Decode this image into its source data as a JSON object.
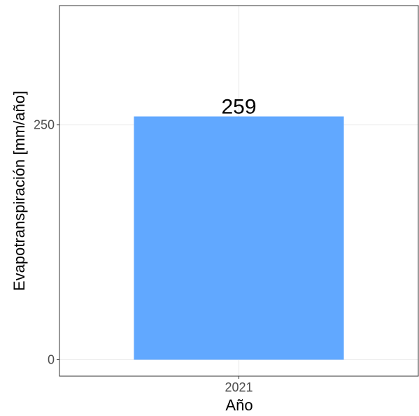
{
  "chart_data": {
    "type": "bar",
    "categories": [
      "2021"
    ],
    "values": [
      259
    ],
    "data_labels": [
      "259"
    ],
    "xlabel": "Año",
    "ylabel": "Evapotranspiración [mm/año]",
    "yticks": [
      0,
      250
    ],
    "ylim": [
      -17.5,
      377
    ],
    "grid": true,
    "bar_color": "#61A8FF"
  }
}
